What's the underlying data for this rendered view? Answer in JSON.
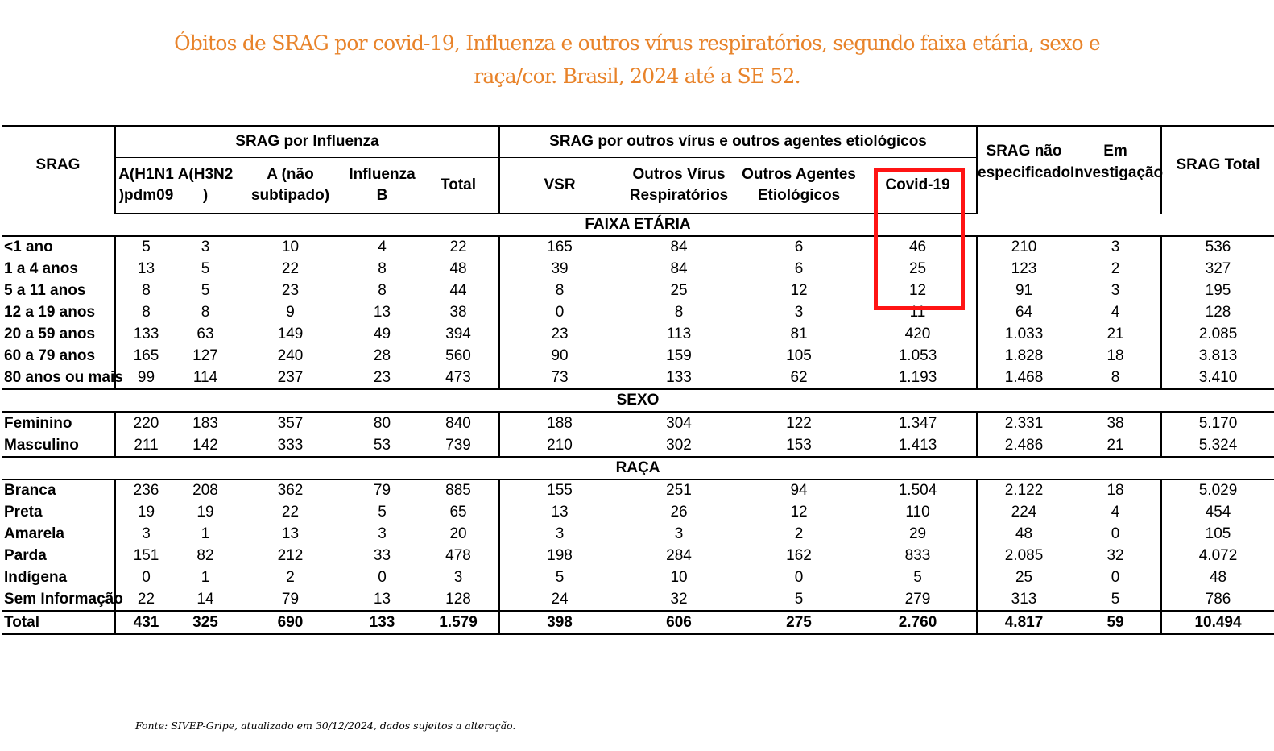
{
  "title": {
    "line1": "Óbitos de SRAG por covid-19, Influenza e outros vírus respiratórios, segundo faixa etária, sexo e",
    "line2": "raça/cor. Brasil, 2024 até a SE 52."
  },
  "header": {
    "srag": "SRAG",
    "influenza_group": "SRAG por Influenza",
    "outros_group": "SRAG por outros vírus e outros agentes etiológicos",
    "h1n1_l1": "A(H1N1",
    "h1n1_l2": ")pdm09",
    "h3n2_l1": "A(H3N2",
    "h3n2_l2": ")",
    "anao_l1": "A (não",
    "anao_l2": "subtipado)",
    "infb_l1": "Influenza",
    "infb_l2": "B",
    "total": "Total",
    "vsr": "VSR",
    "ovr_l1": "Outros Vírus",
    "ovr_l2": "Respiratórios",
    "oae_l1": "Outros Agentes",
    "oae_l2": "Etiológicos",
    "covid": "Covid-19",
    "naoesp_l1": "SRAG não",
    "naoesp_l2": "especificado",
    "inv_l1": "Em",
    "inv_l2": "Investigação",
    "srag_total": "SRAG Total"
  },
  "sections": {
    "faixa": "FAIXA ETÁRIA",
    "sexo": "SEXO",
    "raca": "RAÇA"
  },
  "rows": {
    "r0": [
      "<1 ano",
      "5",
      "3",
      "10",
      "4",
      "22",
      "165",
      "84",
      "6",
      "46",
      "210",
      "3",
      "536"
    ],
    "r1": [
      "1 a 4 anos",
      "13",
      "5",
      "22",
      "8",
      "48",
      "39",
      "84",
      "6",
      "25",
      "123",
      "2",
      "327"
    ],
    "r2": [
      "5 a 11 anos",
      "8",
      "5",
      "23",
      "8",
      "44",
      "8",
      "25",
      "12",
      "12",
      "91",
      "3",
      "195"
    ],
    "r3": [
      "12 a 19 anos",
      "8",
      "8",
      "9",
      "13",
      "38",
      "0",
      "8",
      "3",
      "11",
      "64",
      "4",
      "128"
    ],
    "r4": [
      "20 a 59 anos",
      "133",
      "63",
      "149",
      "49",
      "394",
      "23",
      "113",
      "81",
      "420",
      "1.033",
      "21",
      "2.085"
    ],
    "r5": [
      "60 a 79 anos",
      "165",
      "127",
      "240",
      "28",
      "560",
      "90",
      "159",
      "105",
      "1.053",
      "1.828",
      "18",
      "3.813"
    ],
    "r6": [
      "80 anos ou mais",
      "99",
      "114",
      "237",
      "23",
      "473",
      "73",
      "133",
      "62",
      "1.193",
      "1.468",
      "8",
      "3.410"
    ],
    "r7": [
      "Feminino",
      "220",
      "183",
      "357",
      "80",
      "840",
      "188",
      "304",
      "122",
      "1.347",
      "2.331",
      "38",
      "5.170"
    ],
    "r8": [
      "Masculino",
      "211",
      "142",
      "333",
      "53",
      "739",
      "210",
      "302",
      "153",
      "1.413",
      "2.486",
      "21",
      "5.324"
    ],
    "r9": [
      "Branca",
      "236",
      "208",
      "362",
      "79",
      "885",
      "155",
      "251",
      "94",
      "1.504",
      "2.122",
      "18",
      "5.029"
    ],
    "r10": [
      "Preta",
      "19",
      "19",
      "22",
      "5",
      "65",
      "13",
      "26",
      "12",
      "110",
      "224",
      "4",
      "454"
    ],
    "r11": [
      "Amarela",
      "3",
      "1",
      "13",
      "3",
      "20",
      "3",
      "3",
      "2",
      "29",
      "48",
      "0",
      "105"
    ],
    "r12": [
      "Parda",
      "151",
      "82",
      "212",
      "33",
      "478",
      "198",
      "284",
      "162",
      "833",
      "2.085",
      "32",
      "4.072"
    ],
    "r13": [
      "Indígena",
      "0",
      "1",
      "2",
      "0",
      "3",
      "5",
      "10",
      "0",
      "5",
      "25",
      "0",
      "48"
    ],
    "r14": [
      "Sem Informação",
      "22",
      "14",
      "79",
      "13",
      "128",
      "24",
      "32",
      "5",
      "279",
      "313",
      "5",
      "786"
    ],
    "r15": [
      "Total",
      "431",
      "325",
      "690",
      "133",
      "1.579",
      "398",
      "606",
      "275",
      "2.760",
      "4.817",
      "59",
      "10.494"
    ]
  },
  "highlight_color": "#ff1414",
  "title_color": "#e8832a",
  "footer": "Fonte: SIVEP-Gripe, atualizado em  30/12/2024, dados sujeitos a alteração."
}
